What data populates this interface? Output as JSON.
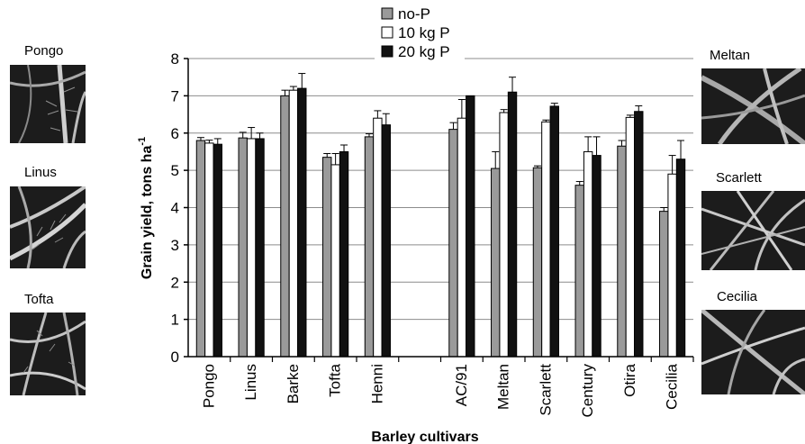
{
  "panels": {
    "left": [
      "Pongo",
      "Linus",
      "Tofta"
    ],
    "right": [
      "Meltan",
      "Scarlett",
      "Cecilia"
    ]
  },
  "chart_data": {
    "type": "bar",
    "xlabel": "Barley cultivars",
    "ylabel": "Grain yield, tons ha",
    "ylabel_superscript": "-1",
    "ylim": [
      0,
      8
    ],
    "yticks": [
      0,
      1,
      2,
      3,
      4,
      5,
      6,
      7,
      8
    ],
    "grid": true,
    "legend_position": "top-center",
    "categories": [
      "Pongo",
      "Linus",
      "Barke",
      "Tofta",
      "Henni",
      "",
      "AC/91",
      "Meltan",
      "Scarlett",
      "Century",
      "Otira",
      "Cecilia"
    ],
    "series": [
      {
        "name": "no-P",
        "color": "#9a9a9a",
        "values": [
          5.8,
          5.87,
          7.0,
          5.35,
          5.9,
          null,
          6.1,
          5.05,
          5.07,
          4.6,
          5.65,
          3.9
        ],
        "errors": [
          0.08,
          0.15,
          0.15,
          0.1,
          0.08,
          null,
          0.18,
          0.45,
          0.05,
          0.1,
          0.15,
          0.1
        ]
      },
      {
        "name": "10 kg P",
        "color": "#ffffff",
        "values": [
          5.73,
          5.85,
          7.15,
          5.15,
          6.4,
          null,
          6.4,
          6.55,
          6.3,
          5.5,
          6.42,
          4.9
        ],
        "errors": [
          0.08,
          0.3,
          0.1,
          0.3,
          0.2,
          null,
          0.5,
          0.08,
          0.05,
          0.4,
          0.06,
          0.5
        ]
      },
      {
        "name": "20 kg P",
        "color": "#111111",
        "values": [
          5.7,
          5.85,
          7.2,
          5.5,
          6.22,
          null,
          7.0,
          7.1,
          6.72,
          5.4,
          6.58,
          5.3
        ],
        "errors": [
          0.15,
          0.15,
          0.4,
          0.18,
          0.3,
          null,
          0.0,
          0.4,
          0.08,
          0.5,
          0.15,
          0.5
        ]
      }
    ]
  }
}
